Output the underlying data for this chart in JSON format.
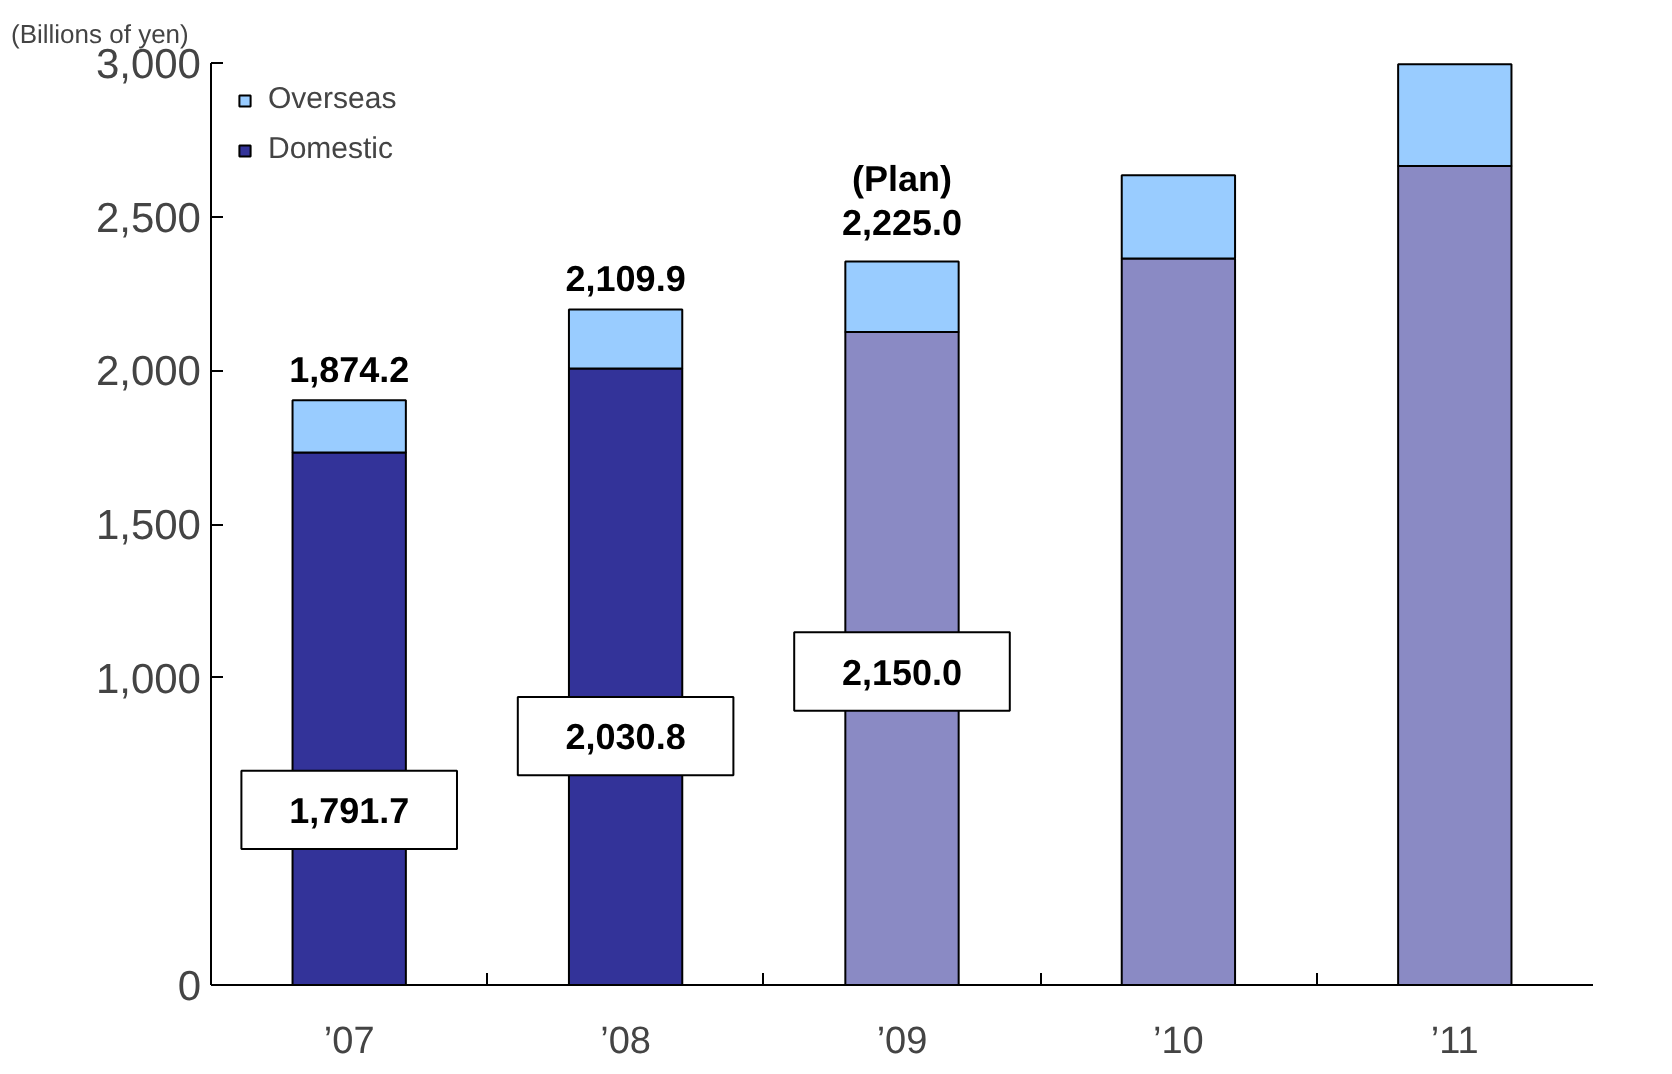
{
  "chart_data": {
    "type": "bar",
    "stacked": true,
    "ylabel": "(Billions of yen)",
    "categories": [
      "’07",
      "’08",
      "’09",
      "’10",
      "’11"
    ],
    "series": [
      {
        "name": "Domestic",
        "color": "#333399",
        "colors": [
          "#333399",
          "#333399",
          "#8a8ac4",
          "#8a8ac4",
          "#8a8ac4"
        ],
        "values": [
          1733,
          2006,
          2125,
          2364,
          2665
        ]
      },
      {
        "name": "Overseas",
        "color": "#99ccff",
        "values": [
          170,
          192,
          229,
          271,
          331
        ]
      }
    ],
    "ylim": [
      0,
      3000
    ],
    "yticks": [
      0,
      {
        "value": 1000,
        "label": "1,000"
      },
      {
        "value": 1500,
        "label": "1,500"
      },
      {
        "value": 2000,
        "label": "2,000"
      },
      {
        "value": 2500,
        "label": "2,500"
      },
      {
        "value": 3000,
        "label": "3,000"
      }
    ],
    "grid": false,
    "legend": "top left",
    "annotations": [
      "1,874.2",
      "1,791.7",
      "2,109.9",
      "2,030.8",
      "(Plan)\n2,225.0",
      "2,150.0"
    ]
  }
}
